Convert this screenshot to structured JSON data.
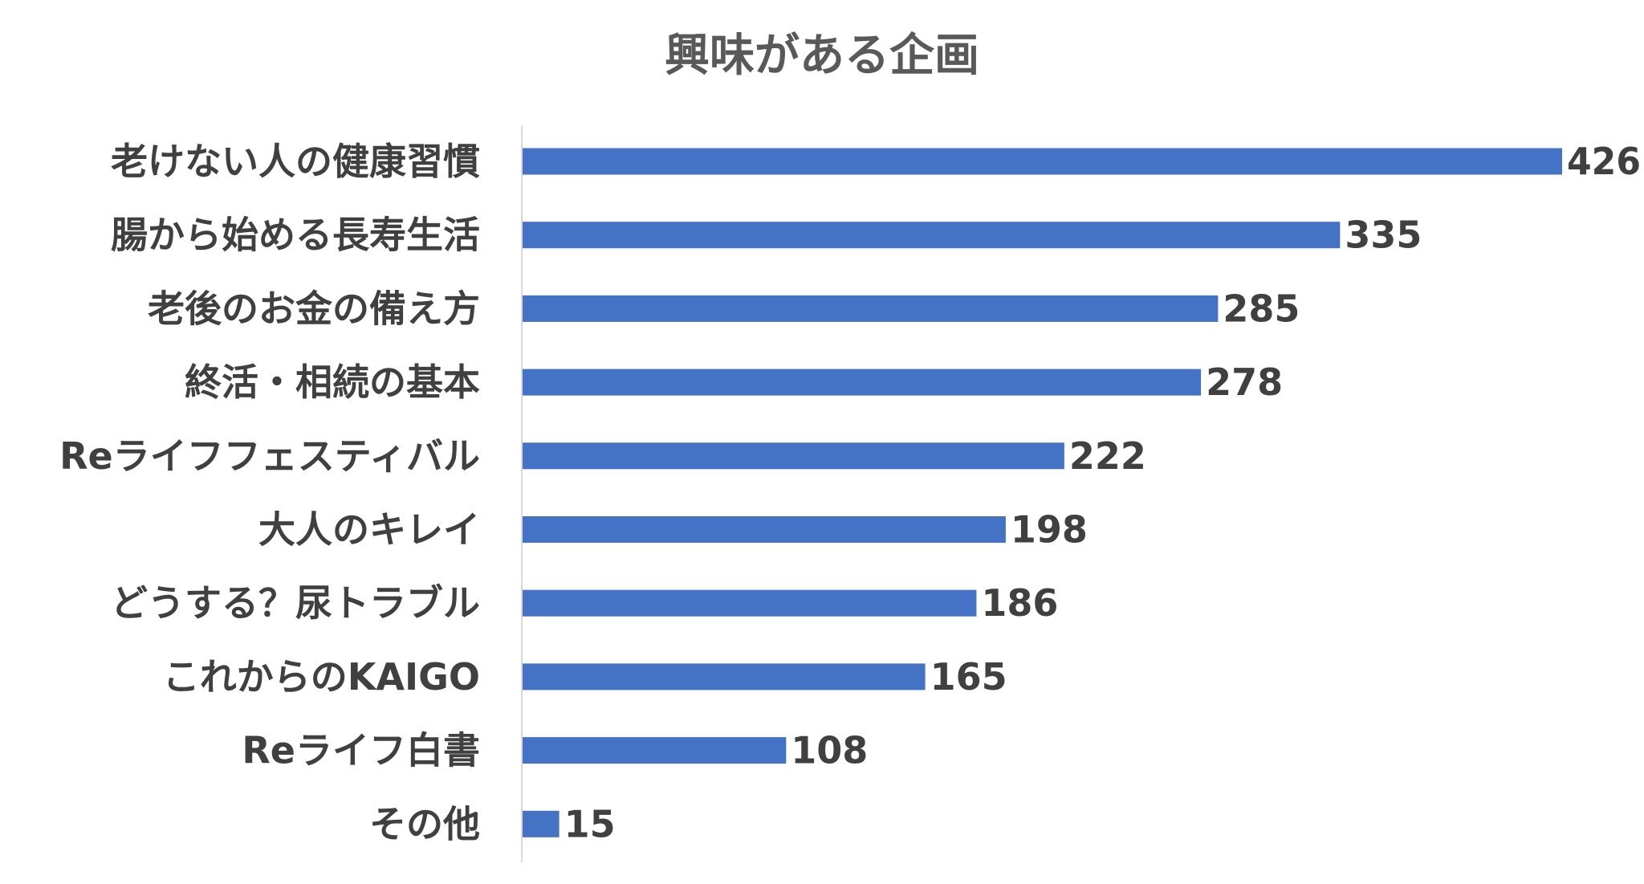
{
  "chart_data": {
    "type": "bar",
    "orientation": "horizontal",
    "title": "興味がある企画",
    "xlabel": "",
    "ylabel": "",
    "categories": [
      "老けない人の健康習慣",
      "腸から始める長寿生活",
      "老後のお金の備え方",
      "終活・相続の基本",
      "Reライフフェスティバル",
      "大人のキレイ",
      "どうする？尿トラブル",
      "これからのKAIGO",
      "Reライフ白書",
      "その他"
    ],
    "values": [
      426,
      335,
      285,
      278,
      222,
      198,
      186,
      165,
      108,
      15
    ],
    "data_labels": [
      "426",
      "335",
      "285",
      "278",
      "222",
      "198",
      "186",
      "165",
      "108",
      "15"
    ],
    "xlim": [
      0,
      426
    ],
    "grid": false,
    "legend": "none",
    "bar_color": "#4472C4",
    "axis_color": "#D9D9D9",
    "text_color": "#404040",
    "title_color": "#595959"
  }
}
